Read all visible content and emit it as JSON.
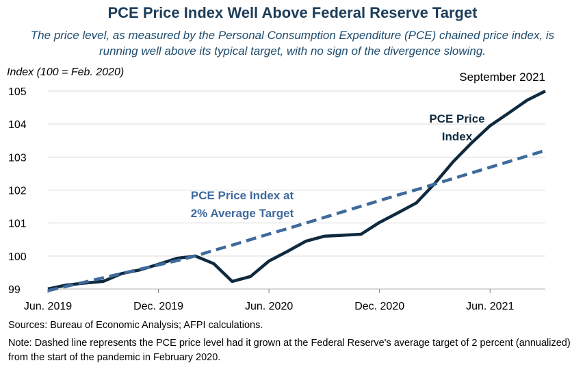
{
  "title": "PCE Price Index Well Above Federal Reserve Target",
  "subtitle": "The price level, as measured by the Personal Consumption Expenditure (PCE) chained price index, is running well above its typical target, with no sign of the divergence slowing.",
  "y_axis_label": "Index (100 = Feb. 2020)",
  "date_note": "September 2021",
  "sources": "Sources: Bureau of Economic Analysis; AFPI calculations.",
  "note": "Note: Dashed line represents the PCE price level had it grown at the Federal Reserve's average target of 2 percent (annualized) from the start of the pandemic in February 2020.",
  "chart_data": {
    "type": "line",
    "x": [
      "2019-06",
      "2019-07",
      "2019-08",
      "2019-09",
      "2019-10",
      "2019-11",
      "2019-12",
      "2020-01",
      "2020-02",
      "2020-03",
      "2020-04",
      "2020-05",
      "2020-06",
      "2020-07",
      "2020-08",
      "2020-09",
      "2020-10",
      "2020-11",
      "2020-12",
      "2021-01",
      "2021-02",
      "2021-03",
      "2021-04",
      "2021-05",
      "2021-06",
      "2021-07",
      "2021-08",
      "2021-09"
    ],
    "x_tick_labels": [
      "Jun. 2019",
      "Dec. 2019",
      "Jun. 2020",
      "Dec. 2020",
      "Jun. 2021"
    ],
    "ylim": [
      99,
      105
    ],
    "y_ticks": [
      99,
      100,
      101,
      102,
      103,
      104,
      105
    ],
    "grid": true,
    "series": [
      {
        "name": "PCE Price Index",
        "style": "solid",
        "color": "#0f2a3f",
        "values": [
          99.0,
          99.12,
          99.18,
          99.23,
          99.47,
          99.58,
          99.75,
          99.93,
          100.0,
          99.77,
          99.23,
          99.38,
          99.85,
          100.14,
          100.45,
          100.6,
          100.63,
          100.66,
          101.02,
          101.31,
          101.61,
          102.2,
          102.86,
          103.43,
          103.95,
          104.33,
          104.72,
          105.0
        ]
      },
      {
        "name": "PCE Price Index at 2% Average Target",
        "style": "dashed",
        "color": "#3e6a9c",
        "values": [
          98.95,
          99.08,
          99.21,
          99.34,
          99.47,
          99.6,
          99.73,
          99.86,
          100.0,
          100.17,
          100.33,
          100.5,
          100.67,
          100.83,
          101.0,
          101.17,
          101.34,
          101.51,
          101.68,
          101.85,
          102.01,
          102.18,
          102.35,
          102.52,
          102.69,
          102.86,
          103.03,
          103.2
        ]
      }
    ],
    "annotations": [
      {
        "lines": [
          "PCE Price",
          "Index"
        ],
        "series": "PCE Price Index"
      },
      {
        "lines": [
          "PCE Price Index at",
          "2% Average Target"
        ],
        "series": "PCE Price Index at 2% Average Target"
      }
    ]
  }
}
